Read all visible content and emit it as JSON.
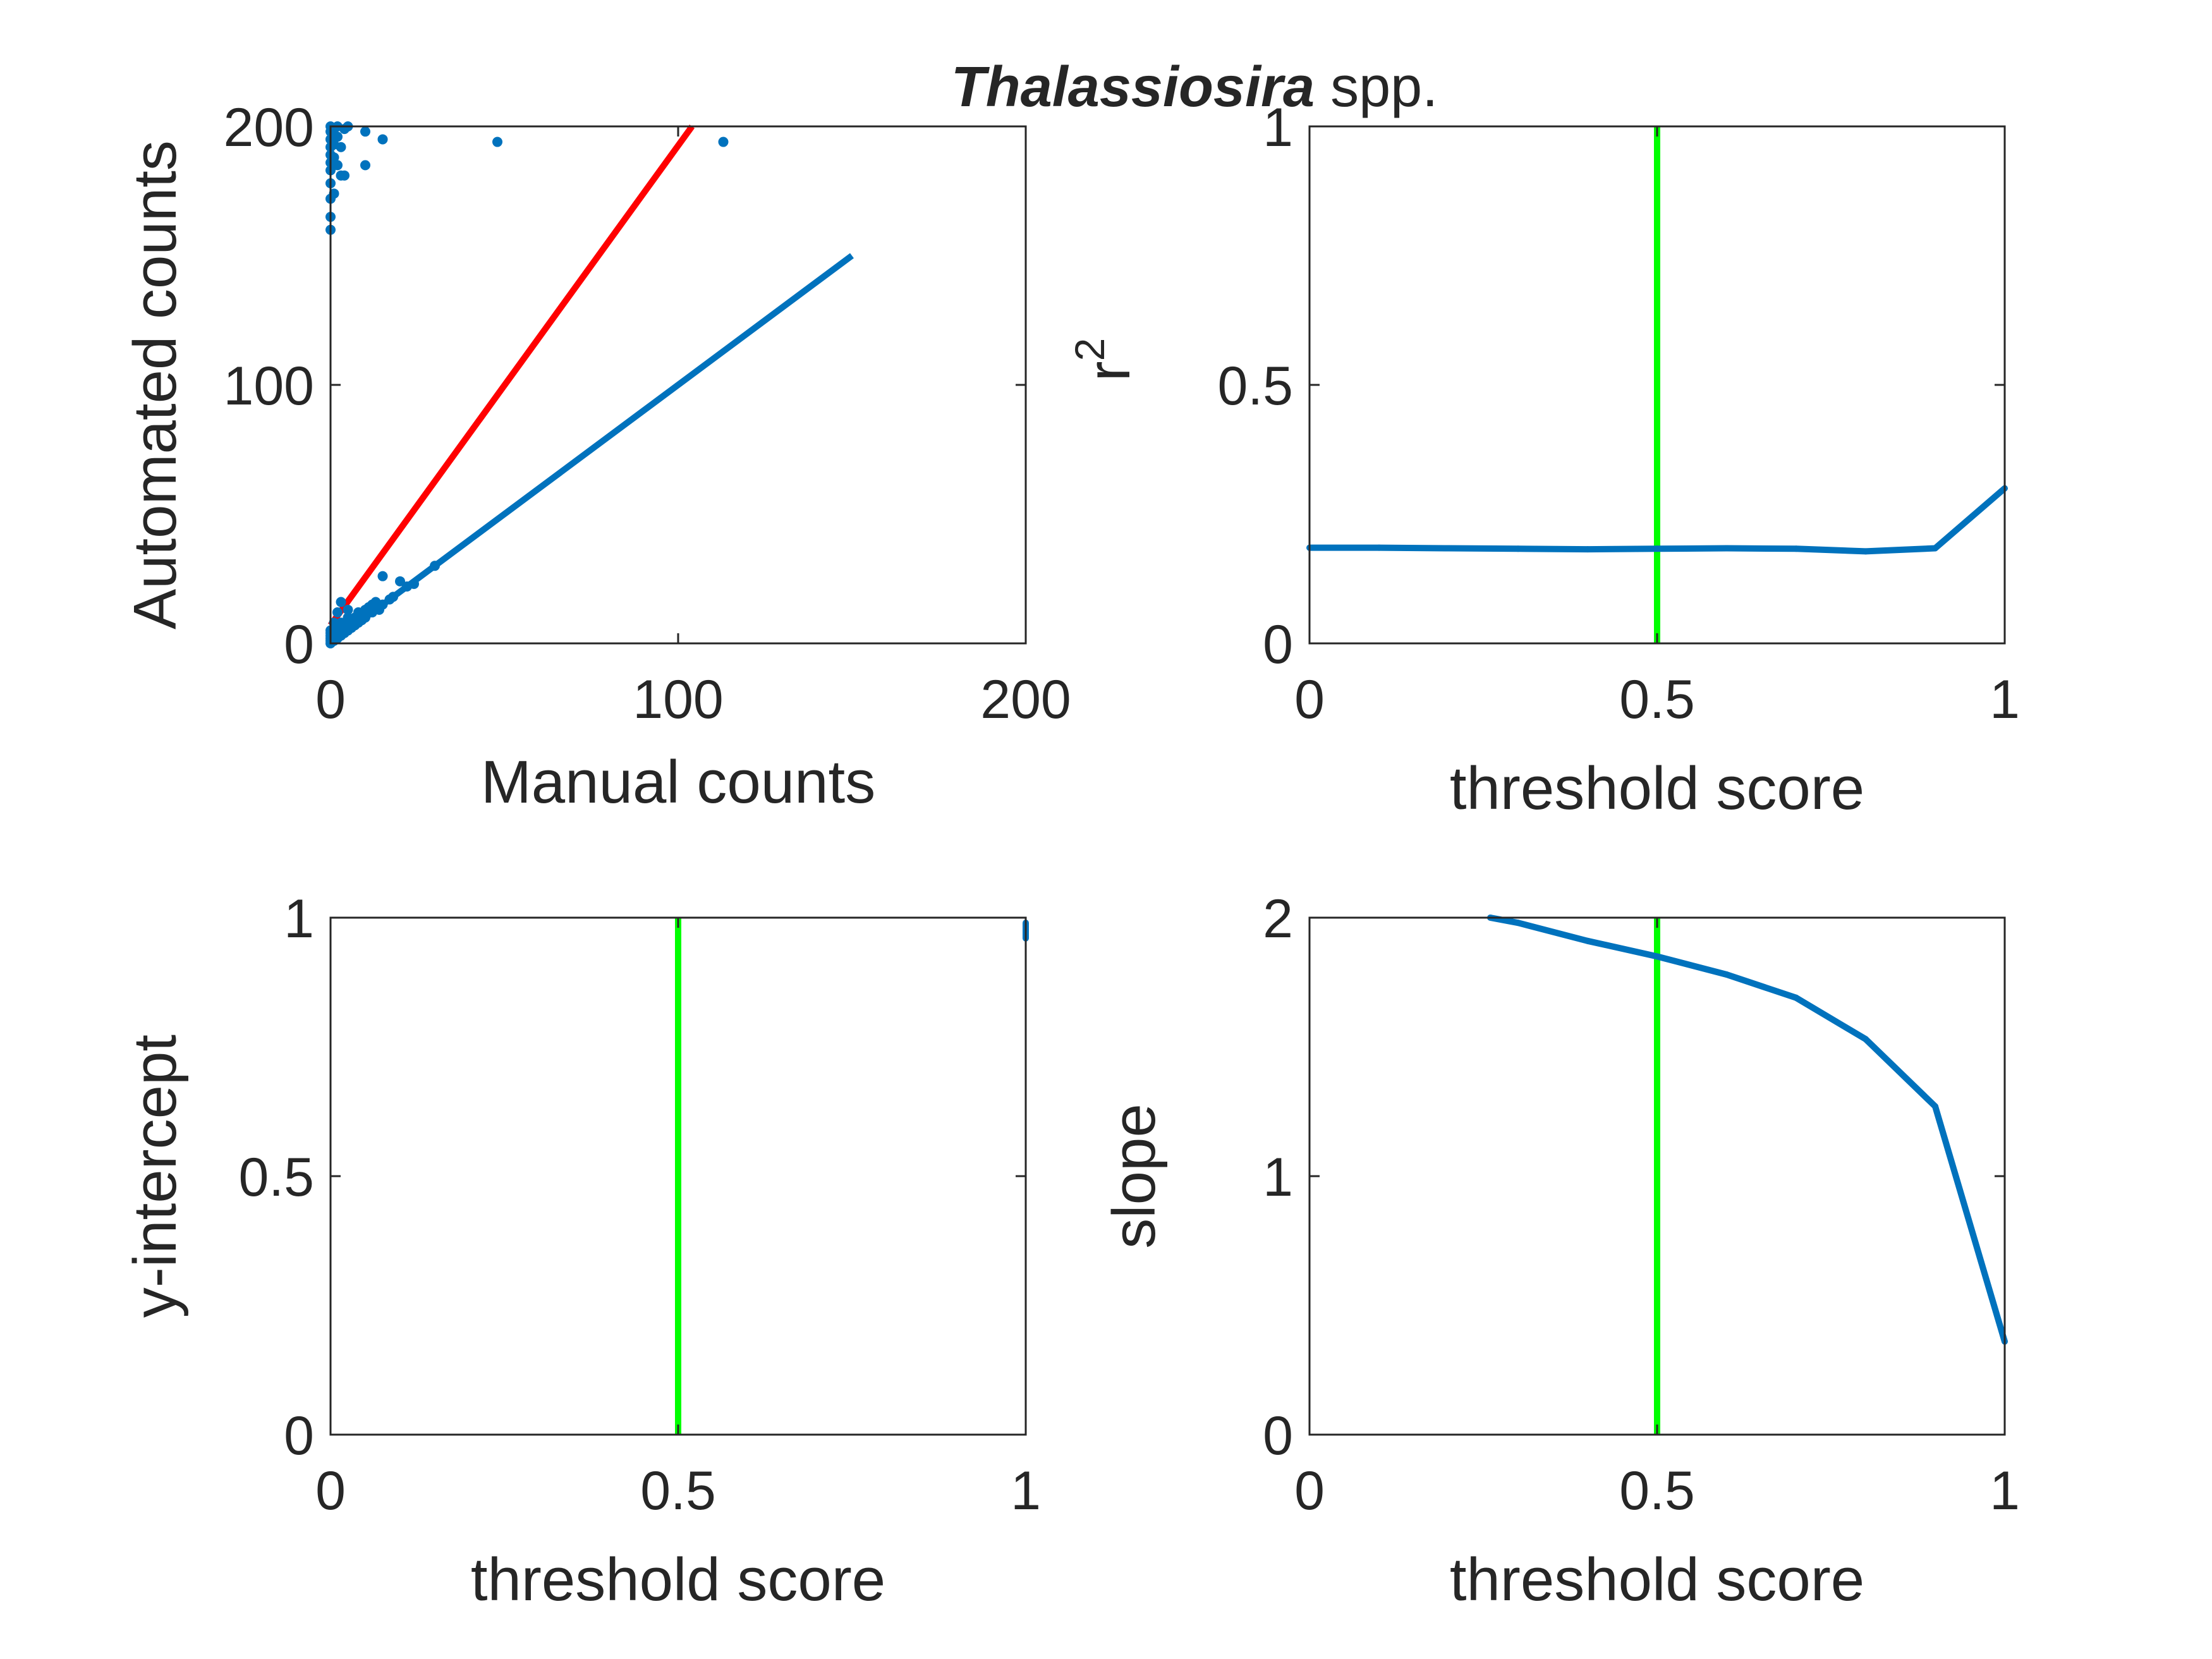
{
  "title": {
    "italic_part": "Thalassiosira",
    "plain_part": " spp."
  },
  "colors": {
    "series": "#0072bd",
    "fit_line": "#ff0000",
    "threshold_line": "#00ff00",
    "axes": "#262626"
  },
  "chart_data": [
    {
      "type": "scatter",
      "xlabel": "Manual counts",
      "ylabel": "Automated counts",
      "xlim": [
        0,
        200
      ],
      "ylim": [
        0,
        200
      ],
      "xticks": [
        "0",
        "100",
        "200"
      ],
      "yticks": [
        "0",
        "100",
        "200"
      ],
      "grid": false,
      "scatter_points": [
        [
          0,
          0
        ],
        [
          0,
          1
        ],
        [
          0,
          2
        ],
        [
          0,
          3
        ],
        [
          0,
          4
        ],
        [
          0,
          5
        ],
        [
          1,
          1
        ],
        [
          1,
          2
        ],
        [
          1,
          3
        ],
        [
          1,
          5
        ],
        [
          2,
          2
        ],
        [
          2,
          3
        ],
        [
          2,
          4
        ],
        [
          2,
          6
        ],
        [
          3,
          3
        ],
        [
          3,
          4
        ],
        [
          3,
          6
        ],
        [
          3,
          8
        ],
        [
          4,
          4
        ],
        [
          4,
          5
        ],
        [
          4,
          7
        ],
        [
          5,
          5
        ],
        [
          5,
          6
        ],
        [
          5,
          10
        ],
        [
          6,
          6
        ],
        [
          6,
          8
        ],
        [
          7,
          7
        ],
        [
          7,
          10
        ],
        [
          8,
          8
        ],
        [
          8,
          12
        ],
        [
          9,
          9
        ],
        [
          9,
          11
        ],
        [
          10,
          10
        ],
        [
          10,
          13
        ],
        [
          11,
          14
        ],
        [
          12,
          12
        ],
        [
          12,
          15
        ],
        [
          13,
          16
        ],
        [
          14,
          13
        ],
        [
          15,
          15
        ],
        [
          15,
          26
        ],
        [
          17,
          17
        ],
        [
          18,
          18
        ],
        [
          20,
          24
        ],
        [
          22,
          22
        ],
        [
          24,
          23
        ],
        [
          30,
          30
        ],
        [
          2,
          12
        ],
        [
          3,
          16
        ],
        [
          1,
          8
        ],
        [
          5,
          13
        ],
        [
          0,
          160
        ],
        [
          0,
          165
        ],
        [
          0,
          172
        ],
        [
          0,
          178
        ],
        [
          0,
          183
        ],
        [
          0,
          186
        ],
        [
          0,
          189
        ],
        [
          0,
          192
        ],
        [
          0,
          195
        ],
        [
          0,
          198
        ],
        [
          0,
          200
        ],
        [
          1,
          197
        ],
        [
          1,
          193
        ],
        [
          1,
          188
        ],
        [
          1,
          174
        ],
        [
          2,
          196
        ],
        [
          2,
          185
        ],
        [
          2,
          200
        ],
        [
          3,
          192
        ],
        [
          3,
          181
        ],
        [
          4,
          199
        ],
        [
          4,
          181
        ],
        [
          5,
          200
        ],
        [
          10,
          185
        ],
        [
          10,
          198
        ],
        [
          15,
          195
        ],
        [
          48,
          194
        ],
        [
          113,
          194
        ]
      ],
      "series": [
        {
          "values_x": [
            0,
            104
          ],
          "values_y": [
            7,
            200
          ]
        },
        {
          "values_x": [
            0,
            150
          ],
          "values_y": [
            0,
            150
          ]
        }
      ]
    },
    {
      "type": "line",
      "xlabel": "threshold score",
      "ylabel": "r",
      "ylabel_superscript": "2",
      "xlim": [
        0,
        1
      ],
      "ylim": [
        0,
        1
      ],
      "xticks": [
        "0",
        "0.5",
        "1"
      ],
      "yticks": [
        "0",
        "0.5",
        "1"
      ],
      "grid": false,
      "x": [
        0,
        0.1,
        0.2,
        0.3,
        0.4,
        0.5,
        0.6,
        0.7,
        0.8,
        0.9,
        1.0
      ],
      "series": [
        {
          "values": [
            0.185,
            0.185,
            0.184,
            0.183,
            0.182,
            0.183,
            0.184,
            0.183,
            0.178,
            0.184,
            0.3
          ]
        }
      ],
      "threshold": 0.5
    },
    {
      "type": "line",
      "xlabel": "threshold score",
      "ylabel": "y-intercept",
      "xlim": [
        0,
        1
      ],
      "ylim": [
        0,
        1
      ],
      "xticks": [
        "0",
        "0.5",
        "1"
      ],
      "yticks": [
        "0",
        "0.5",
        "1"
      ],
      "grid": false,
      "x": [
        1.0,
        1.0
      ],
      "series": [
        {
          "values": [
            0.99,
            0.96
          ]
        }
      ],
      "threshold": 0.5
    },
    {
      "type": "line",
      "xlabel": "threshold score",
      "ylabel": "slope",
      "xlim": [
        0,
        1
      ],
      "ylim": [
        0,
        2
      ],
      "xticks": [
        "0",
        "0.5",
        "1"
      ],
      "yticks": [
        "0",
        "1",
        "2"
      ],
      "grid": false,
      "x": [
        0.26,
        0.3,
        0.4,
        0.5,
        0.6,
        0.7,
        0.8,
        0.9,
        1.0
      ],
      "series": [
        {
          "values": [
            2.0,
            1.98,
            1.91,
            1.85,
            1.78,
            1.69,
            1.53,
            1.27,
            0.36
          ]
        }
      ],
      "threshold": 0.5
    }
  ]
}
